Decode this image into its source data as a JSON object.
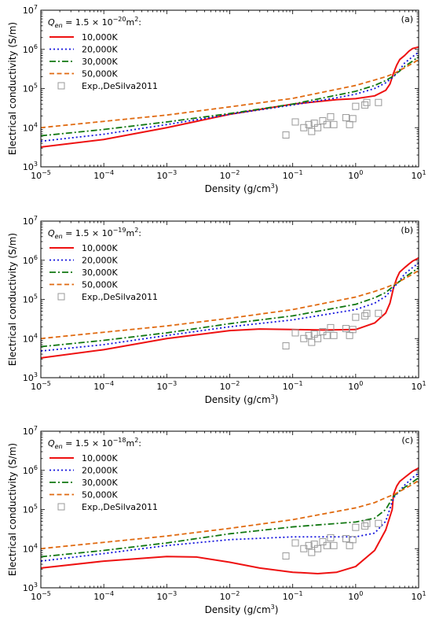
{
  "figure": {
    "xlabel_prefix": "Density (g/cm",
    "xlabel_exp": "3",
    "xlabel_suffix": ")",
    "ylabel": "Electrical conductivity (S/m)"
  },
  "colors": {
    "10000K": "#ee1111",
    "20000K": "#1111dd",
    "30000K": "#117711",
    "50000K": "#e06a10",
    "exp": "#999999"
  },
  "chart_data": [
    {
      "type": "line",
      "panel": "(a)",
      "q_label": "Q",
      "q_sub": "en",
      "q_value": " = 1.5 × 10",
      "q_exp": "−20",
      "q_unit": "m",
      "q_unit_exp": "2",
      "q_colon": ":",
      "xscale": "log",
      "yscale": "log",
      "xlim": [
        1e-05,
        10
      ],
      "ylim": [
        1000,
        10000000
      ],
      "x_ticks": [
        "10",
        "10",
        "10",
        "10",
        "10",
        "10",
        "10"
      ],
      "x_tick_exps": [
        "−5",
        "−4",
        "−3",
        "−2",
        "−1",
        "0",
        "1"
      ],
      "y_ticks": [
        "10",
        "10",
        "10",
        "10",
        "10"
      ],
      "y_tick_exps": [
        "3",
        "4",
        "5",
        "6",
        "7"
      ],
      "legend_position": "top-left",
      "series": [
        {
          "name": "10,000K",
          "style": "solid",
          "x": [
            1e-05,
            0.0001,
            0.001,
            0.01,
            0.1,
            0.5,
            1,
            2,
            3,
            3.5,
            4,
            4.5,
            5,
            6,
            7,
            8,
            10
          ],
          "y": [
            3200,
            5000,
            10000,
            22000,
            40000,
            52000,
            55000,
            65000,
            90000,
            130000,
            250000,
            400000,
            550000,
            700000,
            900000,
            1050000,
            1150000
          ]
        },
        {
          "name": "20,000K",
          "style": "dotted",
          "x": [
            1e-05,
            0.0001,
            0.001,
            0.01,
            0.1,
            0.5,
            1,
            2,
            3,
            4,
            5,
            6,
            8,
            10
          ],
          "y": [
            4500,
            6800,
            12000,
            22000,
            38000,
            58000,
            72000,
            100000,
            140000,
            200000,
            300000,
            450000,
            650000,
            850000
          ]
        },
        {
          "name": "30,000K",
          "style": "dashdot",
          "x": [
            1e-05,
            0.0001,
            0.001,
            0.01,
            0.1,
            1,
            2,
            3,
            4,
            5,
            6,
            8,
            10
          ],
          "y": [
            6200,
            9000,
            14000,
            23000,
            40000,
            85000,
            120000,
            160000,
            210000,
            280000,
            370000,
            500000,
            650000
          ]
        },
        {
          "name": "50,000K",
          "style": "dashed",
          "x": [
            1e-05,
            0.0001,
            0.001,
            0.01,
            0.1,
            1,
            2,
            3,
            4,
            5,
            6,
            8,
            10
          ],
          "y": [
            10000,
            14500,
            21000,
            34000,
            56000,
            120000,
            165000,
            200000,
            240000,
            290000,
            340000,
            440000,
            550000
          ]
        }
      ],
      "exp_name": "Exp.,DeSilva2011",
      "exp_x": [
        0.078,
        0.11,
        0.15,
        0.18,
        0.2,
        0.22,
        0.25,
        0.3,
        0.35,
        0.4,
        0.45,
        0.7,
        0.8,
        0.9,
        1.0,
        1.4,
        1.5,
        2.3
      ],
      "exp_y": [
        6500,
        14000,
        10000,
        12000,
        8000,
        13000,
        10000,
        15000,
        12000,
        19000,
        12000,
        18000,
        12000,
        17000,
        35000,
        38000,
        44000,
        44000
      ]
    },
    {
      "type": "line",
      "panel": "(b)",
      "q_label": "Q",
      "q_sub": "en",
      "q_value": " = 1.5 × 10",
      "q_exp": "−19",
      "q_unit": "m",
      "q_unit_exp": "2",
      "q_colon": ":",
      "xscale": "log",
      "yscale": "log",
      "xlim": [
        1e-05,
        10
      ],
      "ylim": [
        1000,
        10000000
      ],
      "x_ticks": [
        "10",
        "10",
        "10",
        "10",
        "10",
        "10",
        "10"
      ],
      "x_tick_exps": [
        "−5",
        "−4",
        "−3",
        "−2",
        "−1",
        "0",
        "1"
      ],
      "y_ticks": [
        "10",
        "10",
        "10",
        "10",
        "10"
      ],
      "y_tick_exps": [
        "3",
        "4",
        "5",
        "6",
        "7"
      ],
      "legend_position": "top-left",
      "series": [
        {
          "name": "10,000K",
          "style": "solid",
          "x": [
            1e-05,
            0.0001,
            0.001,
            0.01,
            0.03,
            0.1,
            0.3,
            1,
            2,
            3,
            3.5,
            4,
            4.5,
            5,
            6,
            7,
            8,
            10
          ],
          "y": [
            3200,
            5200,
            10000,
            16000,
            17500,
            17000,
            16500,
            17000,
            25000,
            45000,
            80000,
            200000,
            350000,
            500000,
            650000,
            800000,
            950000,
            1150000
          ]
        },
        {
          "name": "20,000K",
          "style": "dotted",
          "x": [
            1e-05,
            0.0001,
            0.001,
            0.01,
            0.1,
            1,
            2,
            3,
            4,
            5,
            6,
            8,
            10
          ],
          "y": [
            4800,
            7000,
            12000,
            20000,
            30000,
            55000,
            80000,
            120000,
            200000,
            300000,
            450000,
            650000,
            850000
          ]
        },
        {
          "name": "30,000K",
          "style": "dashdot",
          "x": [
            1e-05,
            0.0001,
            0.001,
            0.01,
            0.1,
            1,
            2,
            3,
            4,
            5,
            6,
            8,
            10
          ],
          "y": [
            6200,
            9000,
            14000,
            24000,
            38000,
            75000,
            110000,
            150000,
            220000,
            290000,
            370000,
            500000,
            650000
          ]
        },
        {
          "name": "50,000K",
          "style": "dashed",
          "x": [
            1e-05,
            0.0001,
            0.001,
            0.01,
            0.1,
            1,
            2,
            3,
            4,
            5,
            6,
            8,
            10
          ],
          "y": [
            10000,
            14500,
            21000,
            33000,
            55000,
            115000,
            160000,
            200000,
            240000,
            290000,
            340000,
            440000,
            550000
          ]
        }
      ],
      "exp_name": "Exp.,DeSilva2011",
      "exp_x": [
        0.078,
        0.11,
        0.15,
        0.18,
        0.2,
        0.22,
        0.25,
        0.3,
        0.35,
        0.4,
        0.45,
        0.7,
        0.8,
        0.9,
        1.0,
        1.4,
        1.5,
        2.3
      ],
      "exp_y": [
        6500,
        14000,
        10000,
        12000,
        8000,
        13000,
        10000,
        15000,
        12000,
        19000,
        12000,
        18000,
        12000,
        17000,
        35000,
        38000,
        44000,
        44000
      ]
    },
    {
      "type": "line",
      "panel": "(c)",
      "q_label": "Q",
      "q_sub": "en",
      "q_value": " = 1.5 × 10",
      "q_exp": "−18",
      "q_unit": "m",
      "q_unit_exp": "2",
      "q_colon": ":",
      "xscale": "log",
      "yscale": "log",
      "xlim": [
        1e-05,
        10
      ],
      "ylim": [
        1000,
        10000000
      ],
      "x_ticks": [
        "10",
        "10",
        "10",
        "10",
        "10",
        "10",
        "10"
      ],
      "x_tick_exps": [
        "−5",
        "−4",
        "−3",
        "−2",
        "−1",
        "0",
        "1"
      ],
      "y_ticks": [
        "10",
        "10",
        "10",
        "10",
        "10"
      ],
      "y_tick_exps": [
        "3",
        "4",
        "5",
        "6",
        "7"
      ],
      "legend_position": "top-left",
      "series": [
        {
          "name": "10,000K",
          "style": "solid",
          "x": [
            1e-05,
            0.0001,
            0.001,
            0.003,
            0.01,
            0.03,
            0.1,
            0.25,
            0.5,
            1,
            2,
            3,
            3.8,
            4,
            4.5,
            5,
            6,
            7,
            8,
            10
          ],
          "y": [
            3200,
            4800,
            6300,
            6100,
            4500,
            3200,
            2500,
            2300,
            2500,
            3500,
            9000,
            30000,
            100000,
            250000,
            400000,
            520000,
            660000,
            800000,
            950000,
            1150000
          ]
        },
        {
          "name": "20,000K",
          "style": "dotted",
          "x": [
            1e-05,
            0.0001,
            0.001,
            0.01,
            0.1,
            1,
            2,
            3,
            4,
            5,
            6,
            8,
            10
          ],
          "y": [
            4800,
            7500,
            12000,
            17000,
            20000,
            20000,
            25000,
            50000,
            200000,
            300000,
            420000,
            650000,
            850000
          ]
        },
        {
          "name": "30,000K",
          "style": "dashdot",
          "x": [
            1e-05,
            0.0001,
            0.001,
            0.01,
            0.1,
            1,
            2,
            3,
            4,
            5,
            6,
            8,
            10
          ],
          "y": [
            6200,
            9000,
            14000,
            24000,
            36000,
            48000,
            60000,
            100000,
            220000,
            300000,
            370000,
            500000,
            650000
          ]
        },
        {
          "name": "50,000K",
          "style": "dashed",
          "x": [
            1e-05,
            0.0001,
            0.001,
            0.01,
            0.1,
            1,
            2,
            3,
            4,
            5,
            6,
            8,
            10
          ],
          "y": [
            10000,
            14500,
            21000,
            33000,
            55000,
            110000,
            150000,
            200000,
            240000,
            290000,
            340000,
            440000,
            550000
          ]
        }
      ],
      "exp_name": "Exp.,DeSilva2011",
      "exp_x": [
        0.078,
        0.11,
        0.15,
        0.18,
        0.2,
        0.22,
        0.25,
        0.3,
        0.35,
        0.4,
        0.45,
        0.7,
        0.8,
        0.9,
        1.0,
        1.4,
        1.5,
        2.3
      ],
      "exp_y": [
        6500,
        14000,
        10000,
        12000,
        8000,
        13000,
        10000,
        15000,
        12000,
        19000,
        12000,
        18000,
        12000,
        17000,
        35000,
        38000,
        44000,
        44000
      ]
    }
  ]
}
